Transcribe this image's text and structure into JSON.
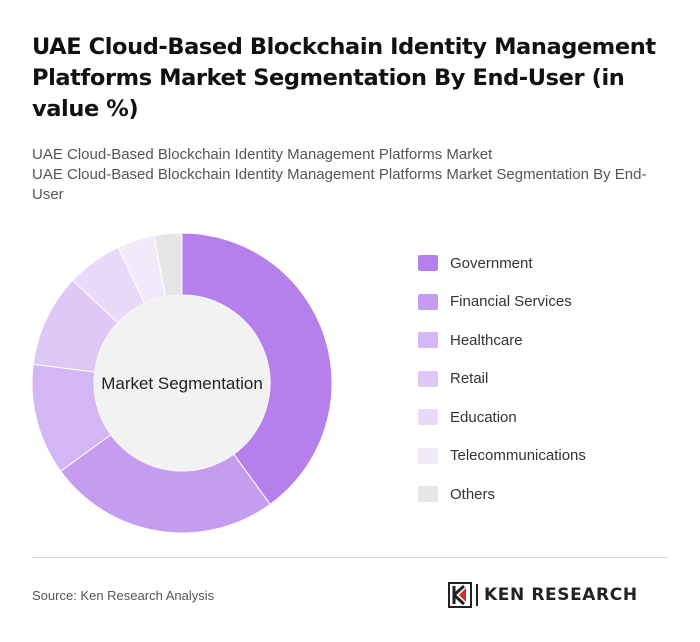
{
  "header": {
    "title": "UAE Cloud-Based Blockchain Identity Management Platforms Market Segmentation By End-User (in value %)",
    "subtitle_line1": "UAE Cloud-Based Blockchain Identity Management Platforms Market",
    "subtitle_line2": "UAE Cloud-Based Blockchain Identity Management Platforms Market Segmentation By End-User"
  },
  "chart_data": {
    "type": "pie",
    "center_label": "Market Segmentation",
    "categories": [
      "Government",
      "Financial Services",
      "Healthcare",
      "Retail",
      "Education",
      "Telecommunications",
      "Others"
    ],
    "values": [
      40,
      25,
      12,
      10,
      6,
      4,
      3
    ],
    "colors": [
      "#b57fec",
      "#c69cf0",
      "#d4b6f4",
      "#dfc8f6",
      "#e9daf9",
      "#f2eafb",
      "#e6e6e6"
    ],
    "legend_position": "right"
  },
  "footer": {
    "source": "Source: Ken Research Analysis",
    "logo_text": "KEN RESEARCH"
  }
}
